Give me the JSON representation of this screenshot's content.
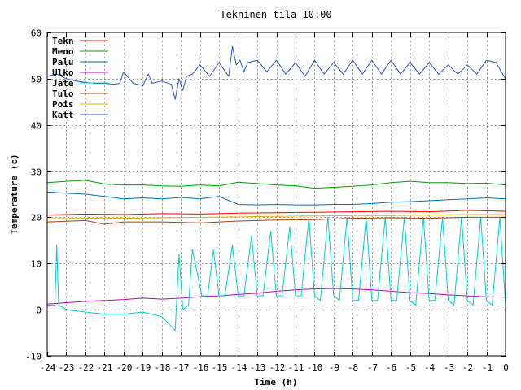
{
  "chart_data": {
    "type": "line",
    "title": "Tekninen tila 10:00",
    "xlabel": "Time (h)",
    "ylabel": "Temperature (c)",
    "xlim": [
      -24,
      0
    ],
    "ylim": [
      -10,
      60
    ],
    "x_ticks": [
      -24,
      -23,
      -22,
      -21,
      -20,
      -19,
      -18,
      -17,
      -16,
      -15,
      -14,
      -13,
      -12,
      -11,
      -10,
      -9,
      -8,
      -7,
      -6,
      -5,
      -4,
      -3,
      -2,
      -1,
      0
    ],
    "y_ticks": [
      -10,
      0,
      10,
      20,
      30,
      40,
      50,
      60
    ],
    "grid": true,
    "legend_position": "top-left",
    "series": [
      {
        "name": "Tekn",
        "color": "#ff0000",
        "x": [
          -24,
          -22,
          -20,
          -18,
          -16,
          -14,
          -12,
          -10,
          -8,
          -6,
          -4,
          -2,
          0
        ],
        "y": [
          20.5,
          20.7,
          20.6,
          20.8,
          20.7,
          20.9,
          21.0,
          21.1,
          21.2,
          21.3,
          21.2,
          21.5,
          21.3
        ]
      },
      {
        "name": "Meno",
        "color": "#00a000",
        "x": [
          -24,
          -23,
          -22,
          -21,
          -20,
          -19,
          -18,
          -17,
          -16,
          -15,
          -14,
          -13,
          -12,
          -11,
          -10,
          -9,
          -8,
          -7,
          -6,
          -5,
          -4,
          -3,
          -2,
          -1,
          0
        ],
        "y": [
          27.5,
          27.8,
          28.0,
          27.2,
          27.0,
          27.0,
          26.8,
          26.7,
          27.0,
          26.8,
          27.6,
          27.3,
          27.0,
          26.8,
          26.3,
          26.5,
          26.7,
          27.0,
          27.5,
          27.8,
          27.5,
          27.5,
          27.3,
          27.4,
          27.0
        ]
      },
      {
        "name": "Palu",
        "color": "#0070c0",
        "x": [
          -24,
          -23,
          -22,
          -21,
          -20,
          -19,
          -18,
          -17,
          -16,
          -15,
          -14,
          -13,
          -12,
          -11,
          -10,
          -9,
          -8,
          -7,
          -6,
          -5,
          -4,
          -3,
          -2,
          -1,
          0
        ],
        "y": [
          25.5,
          25.2,
          25.0,
          24.5,
          24.0,
          24.2,
          24.0,
          24.3,
          24.0,
          24.5,
          22.8,
          22.7,
          22.8,
          22.7,
          22.7,
          22.8,
          22.8,
          23.0,
          23.3,
          23.4,
          23.6,
          23.8,
          24.0,
          24.2,
          24.0
        ]
      },
      {
        "name": "Ulko",
        "color": "#c000c0",
        "x": [
          -24,
          -22,
          -20,
          -19,
          -18,
          -17,
          -16,
          -15,
          -14,
          -13,
          -12,
          -11,
          -10,
          -9,
          -8,
          -7,
          -6,
          -5,
          -4,
          -3,
          -2,
          -1,
          0
        ],
        "y": [
          1.2,
          1.8,
          2.2,
          2.5,
          2.3,
          2.5,
          2.8,
          3.0,
          3.3,
          3.6,
          4.0,
          4.3,
          4.5,
          4.6,
          4.5,
          4.3,
          4.0,
          3.7,
          3.5,
          3.2,
          3.0,
          2.8,
          2.7
        ]
      },
      {
        "name": "Jate",
        "color": "#00d0d0",
        "x": [
          -24,
          -23.6,
          -23.5,
          -23.4,
          -23.0,
          -22.0,
          -21.0,
          -20.0,
          -19.0,
          -18.0,
          -17.3,
          -17.1,
          -16.9,
          -16.6,
          -16.4,
          -15.9,
          -15.6,
          -15.3,
          -15.0,
          -14.7,
          -14.3,
          -14.0,
          -13.7,
          -13.3,
          -13.0,
          -12.7,
          -12.3,
          -12.0,
          -11.7,
          -11.3,
          -11.0,
          -10.7,
          -10.3,
          -10.0,
          -9.7,
          -9.3,
          -9.0,
          -8.7,
          -8.3,
          -8.0,
          -7.7,
          -7.3,
          -7.0,
          -6.7,
          -6.3,
          -6.0,
          -5.7,
          -5.3,
          -5.0,
          -4.7,
          -4.3,
          -4.0,
          -3.7,
          -3.3,
          -3.0,
          -2.7,
          -2.3,
          -2.0,
          -1.7,
          -1.3,
          -1.0,
          -0.7,
          -0.3,
          0
        ],
        "y": [
          1,
          1,
          14,
          1,
          0,
          -0.5,
          -1,
          -1,
          -0.5,
          -1.5,
          -4.5,
          12,
          0,
          1,
          13,
          3,
          3,
          13,
          3,
          3,
          14,
          3,
          3,
          16,
          3,
          3,
          17,
          3,
          3,
          18,
          3,
          3,
          20,
          3,
          2,
          20,
          3,
          2,
          20,
          2,
          2,
          20,
          2,
          2,
          20,
          2,
          2,
          20,
          2,
          1,
          20,
          2,
          2,
          20,
          2,
          1,
          20,
          2,
          1,
          20,
          2,
          1,
          20,
          1
        ]
      },
      {
        "name": "Tulo",
        "color": "#b04000",
        "x": [
          -24,
          -22,
          -21,
          -20,
          -18,
          -16,
          -14,
          -12,
          -10,
          -8,
          -6,
          -4,
          -2,
          0
        ],
        "y": [
          19.0,
          19.3,
          18.5,
          19.0,
          19.0,
          18.8,
          19.2,
          19.4,
          19.5,
          19.8,
          19.9,
          19.8,
          20.0,
          20.0
        ]
      },
      {
        "name": "Pois",
        "color": "#e0b000",
        "x": [
          -24,
          -22,
          -20,
          -18,
          -16,
          -14,
          -12,
          -10,
          -8,
          -6,
          -4,
          -2,
          0
        ],
        "y": [
          19.7,
          19.8,
          19.8,
          19.9,
          20.0,
          20.1,
          20.2,
          20.3,
          20.4,
          20.4,
          20.5,
          20.6,
          20.6
        ]
      },
      {
        "name": "Katt",
        "color": "#3050c0",
        "x": [
          -24,
          -23.5,
          -23,
          -22.5,
          -22.0,
          -21.5,
          -21.0,
          -20.5,
          -20.2,
          -20.0,
          -19.5,
          -19.0,
          -18.7,
          -18.5,
          -18.0,
          -17.5,
          -17.3,
          -17.1,
          -16.9,
          -16.7,
          -16.4,
          -16.0,
          -15.5,
          -15.0,
          -14.5,
          -14.3,
          -14.1,
          -13.9,
          -13.7,
          -13.5,
          -13.0,
          -12.5,
          -12.0,
          -11.5,
          -11.0,
          -10.5,
          -10.0,
          -9.5,
          -9.0,
          -8.5,
          -8.0,
          -7.5,
          -7.0,
          -6.5,
          -6.0,
          -5.5,
          -5.0,
          -4.5,
          -4.0,
          -3.5,
          -3.0,
          -2.5,
          -2.0,
          -1.5,
          -1.0,
          -0.5,
          0
        ],
        "y": [
          50.5,
          51.0,
          50.0,
          49.5,
          49.2,
          49.0,
          49.0,
          48.8,
          49.0,
          51.5,
          49.0,
          48.5,
          51.0,
          49.0,
          49.5,
          48.8,
          45.5,
          50.0,
          47.5,
          50.5,
          51.0,
          53.0,
          50.5,
          53.5,
          50.5,
          57.0,
          53.0,
          54.0,
          51.5,
          53.5,
          54.0,
          51.5,
          54.0,
          51.0,
          53.5,
          50.5,
          54.0,
          51.0,
          53.5,
          51.0,
          54.0,
          51.0,
          54.0,
          51.0,
          54.0,
          51.0,
          53.5,
          51.0,
          53.5,
          51.0,
          53.0,
          51.0,
          53.0,
          51.0,
          54.0,
          53.5,
          50.0
        ]
      }
    ]
  }
}
